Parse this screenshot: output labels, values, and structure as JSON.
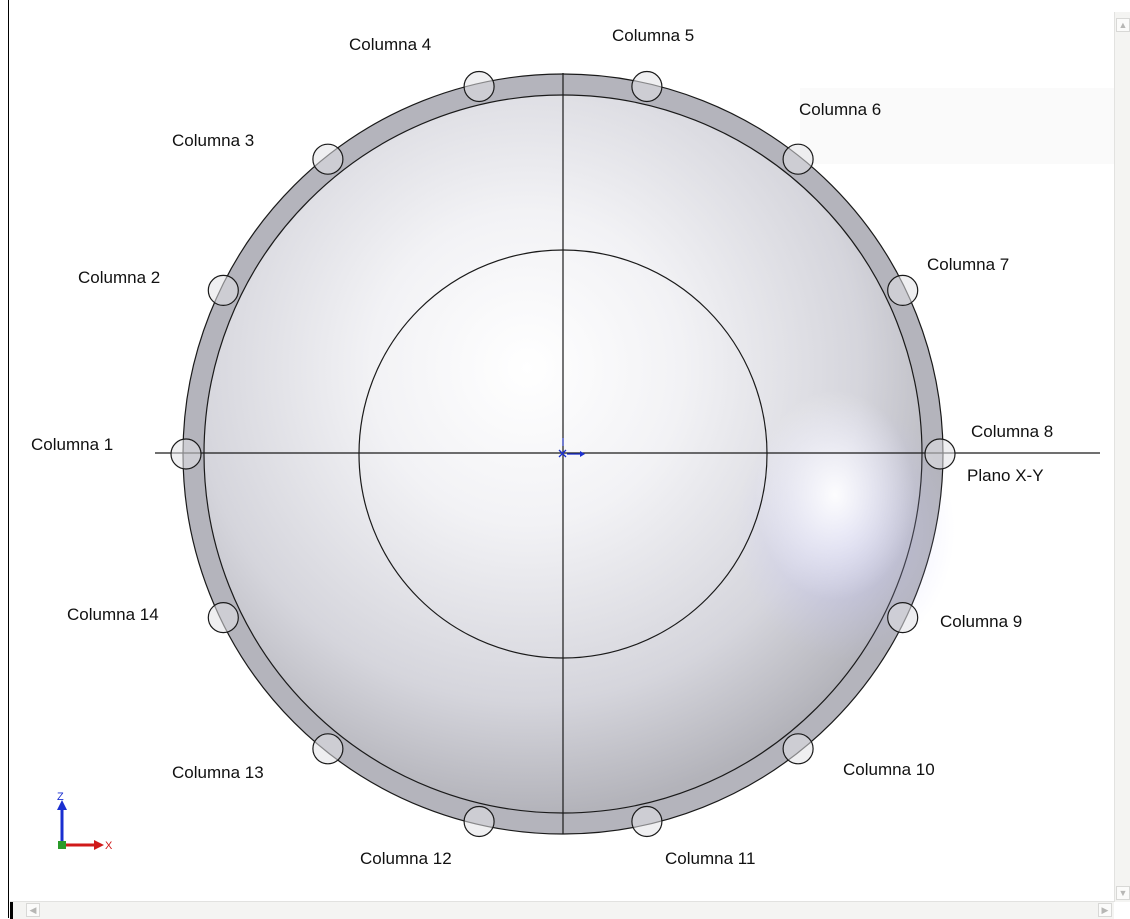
{
  "plane_label": "Plano X-Y",
  "columns": [
    {
      "label": "Columna 1"
    },
    {
      "label": "Columna 2"
    },
    {
      "label": "Columna 3"
    },
    {
      "label": "Columna 4"
    },
    {
      "label": "Columna 5"
    },
    {
      "label": "Columna 6"
    },
    {
      "label": "Columna 7"
    },
    {
      "label": "Columna 8"
    },
    {
      "label": "Columna 9"
    },
    {
      "label": "Columna 10"
    },
    {
      "label": "Columna 11"
    },
    {
      "label": "Columna 12"
    },
    {
      "label": "Columna 13"
    },
    {
      "label": "Columna 14"
    }
  ],
  "triad": {
    "z_label": "Z",
    "x_label": "X",
    "z_color": "#1a2fd0",
    "x_color": "#d01a1a"
  },
  "colors": {
    "dome_light": "#ffffff",
    "dome_mid": "#dcdce6",
    "dome_dark": "#a9a9b0",
    "rim": "#b9b9c2",
    "outline": "#1a1a1a",
    "origin": "#1a2fd0"
  },
  "scrollbars": {
    "up_glyph": "▲",
    "down_glyph": "▼",
    "left_glyph": "◀",
    "right_glyph": "▶"
  }
}
